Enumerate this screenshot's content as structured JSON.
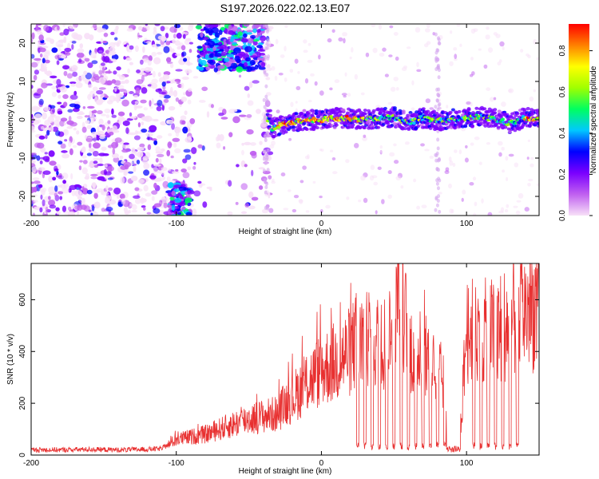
{
  "title": "S197.2026.022.02.13.E07",
  "chart_data": [
    {
      "type": "heatmap",
      "xlabel": "Height of straight line (km)",
      "ylabel": "Frequency (Hz)",
      "xlim": [
        -200,
        150
      ],
      "ylim": [
        -25,
        25
      ],
      "xticks": [
        "-200",
        "-100",
        "0",
        "100"
      ],
      "xtick_values": [
        -200,
        -100,
        0,
        100
      ],
      "yticks": [
        "20",
        "10",
        "0",
        "-10",
        "-20"
      ],
      "ytick_values": [
        20,
        10,
        0,
        -10,
        -20
      ],
      "colorbar": {
        "label": "Normalized spectral amplitude",
        "ticks": [
          "0.0",
          "0.2",
          "0.4",
          "0.6",
          "0.8"
        ],
        "tick_values": [
          0,
          0.2,
          0.4,
          0.6,
          0.8
        ],
        "range": [
          0,
          0.93
        ],
        "colors": [
          "#f7e0f7",
          "#c060f0",
          "#7a00ff",
          "#0000ff",
          "#00c8ff",
          "#00ff60",
          "#a0ff00",
          "#ffff00",
          "#ff8000",
          "#ff0000"
        ]
      },
      "ridge": [
        [
          -35,
          -2.5
        ],
        [
          -30,
          -1.5
        ],
        [
          -20,
          -0.5
        ],
        [
          -10,
          0
        ],
        [
          0,
          0
        ],
        [
          10,
          0.5
        ],
        [
          20,
          0.3
        ],
        [
          30,
          0
        ],
        [
          40,
          0.5
        ],
        [
          50,
          0.7
        ],
        [
          60,
          -0.8
        ],
        [
          70,
          0.5
        ],
        [
          80,
          -0.3
        ],
        [
          90,
          0.2
        ],
        [
          100,
          0.4
        ],
        [
          110,
          0.8
        ],
        [
          120,
          0.2
        ],
        [
          130,
          -1
        ],
        [
          140,
          0.5
        ],
        [
          150,
          0.2
        ]
      ],
      "upper_cluster": {
        "x": [
          -85,
          -40
        ],
        "y": [
          13,
          25
        ]
      },
      "lower_cluster": {
        "x": [
          -105,
          -90
        ],
        "y": [
          -25,
          -17
        ]
      },
      "noise_region": {
        "x": [
          -200,
          -35
        ],
        "y": [
          -25,
          25
        ]
      },
      "vertical_streaks": [
        -38,
        80
      ]
    },
    {
      "type": "line",
      "xlabel": "Height of straight line (km)",
      "ylabel": "SNR (10 * v/v)",
      "xlim": [
        -200,
        150
      ],
      "ylim": [
        0,
        740
      ],
      "xticks": [
        "-200",
        "-100",
        "0",
        "100"
      ],
      "xtick_values": [
        -200,
        -100,
        0,
        100
      ],
      "yticks": [
        "600",
        "400",
        "200",
        "0"
      ],
      "ytick_values": [
        600,
        400,
        200,
        0
      ],
      "color": "#e83030",
      "series": [
        {
          "x": [
            -200,
            -180,
            -160,
            -140,
            -120,
            -110,
            -100,
            -90,
            -80,
            -70,
            -60,
            -50,
            -40,
            -30,
            -25,
            -20,
            -10,
            0,
            10,
            20,
            25,
            30,
            40,
            50,
            55,
            60,
            70,
            80,
            85,
            90,
            95,
            100,
            110,
            120,
            130,
            140,
            150
          ],
          "values": [
            20,
            20,
            22,
            20,
            22,
            25,
            60,
            70,
            80,
            100,
            120,
            140,
            150,
            160,
            200,
            220,
            280,
            330,
            360,
            400,
            450,
            470,
            430,
            460,
            650,
            420,
            380,
            340,
            260,
            30,
            20,
            480,
            470,
            480,
            520,
            560,
            580
          ]
        }
      ],
      "dropouts": [
        25,
        30,
        35,
        40,
        45,
        50,
        55,
        60,
        65,
        70,
        75,
        80,
        85,
        105,
        110,
        115,
        120,
        125,
        130,
        135
      ]
    }
  ]
}
